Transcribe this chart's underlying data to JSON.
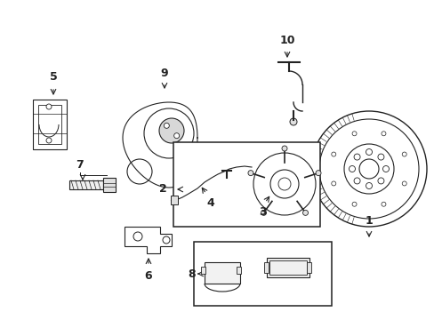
{
  "bg_color": "#ffffff",
  "lc": "#222222",
  "lw": 0.8,
  "figsize": [
    4.89,
    3.6
  ],
  "dpi": 100
}
